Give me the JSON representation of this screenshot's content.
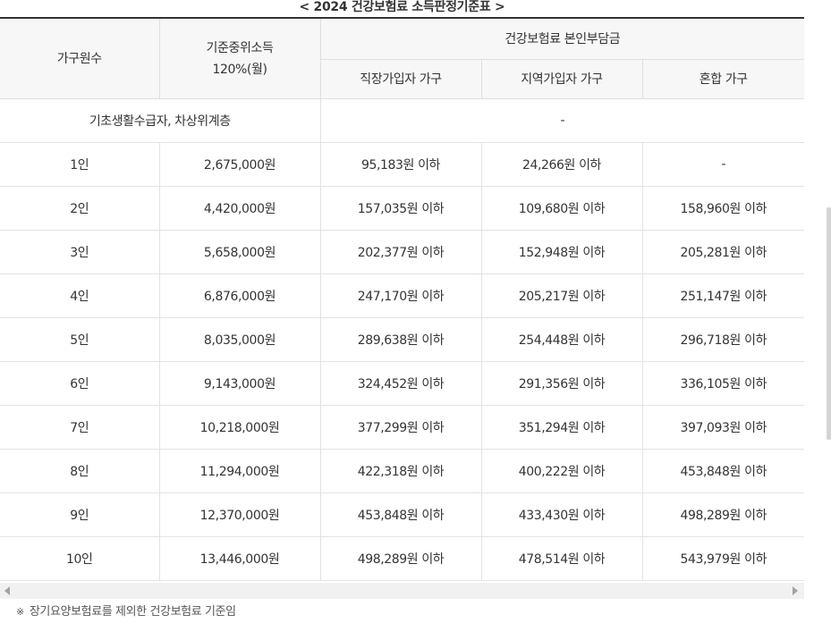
{
  "caption": "< 2024 건강보험료 소득판정기준표 >",
  "headers": {
    "household": "가구원수",
    "income_line1": "기준중위소득",
    "income_line2": "120%(월)",
    "premium_group": "건강보험료 본인부담금",
    "employee": "직장가입자 가구",
    "regional": "지역가입자 가구",
    "mixed": "혼합 가구"
  },
  "special_row": {
    "label": "기초생활수급자, 차상위계층",
    "value": "-"
  },
  "rows": [
    {
      "size": "1인",
      "income": "2,675,000원",
      "employee": "95,183원 이하",
      "regional": "24,266원 이하",
      "mixed": "-"
    },
    {
      "size": "2인",
      "income": "4,420,000원",
      "employee": "157,035원 이하",
      "regional": "109,680원 이하",
      "mixed": "158,960원 이하"
    },
    {
      "size": "3인",
      "income": "5,658,000원",
      "employee": "202,377원 이하",
      "regional": "152,948원 이하",
      "mixed": "205,281원 이하"
    },
    {
      "size": "4인",
      "income": "6,876,000원",
      "employee": "247,170원 이하",
      "regional": "205,217원 이하",
      "mixed": "251,147원 이하"
    },
    {
      "size": "5인",
      "income": "8,035,000원",
      "employee": "289,638원 이하",
      "regional": "254,448원 이하",
      "mixed": "296,718원 이하"
    },
    {
      "size": "6인",
      "income": "9,143,000원",
      "employee": "324,452원 이하",
      "regional": "291,356원 이하",
      "mixed": "336,105원 이하"
    },
    {
      "size": "7인",
      "income": "10,218,000원",
      "employee": "377,299원 이하",
      "regional": "351,294원 이하",
      "mixed": "397,093원 이하"
    },
    {
      "size": "8인",
      "income": "11,294,000원",
      "employee": "422,318원 이하",
      "regional": "400,222원 이하",
      "mixed": "453,848원 이하"
    },
    {
      "size": "9인",
      "income": "12,370,000원",
      "employee": "453,848원 이하",
      "regional": "433,430원 이하",
      "mixed": "498,289원 이하"
    },
    {
      "size": "10인",
      "income": "13,446,000원",
      "employee": "498,289원 이하",
      "regional": "478,514원 이하",
      "mixed": "543,979원 이하"
    }
  ],
  "note": {
    "mark": "※",
    "text": "장기요양보험료를 제외한 건강보험료 기준임"
  },
  "icons": {
    "scroll_left": "chevron-left-icon",
    "scroll_right": "chevron-right-icon"
  }
}
